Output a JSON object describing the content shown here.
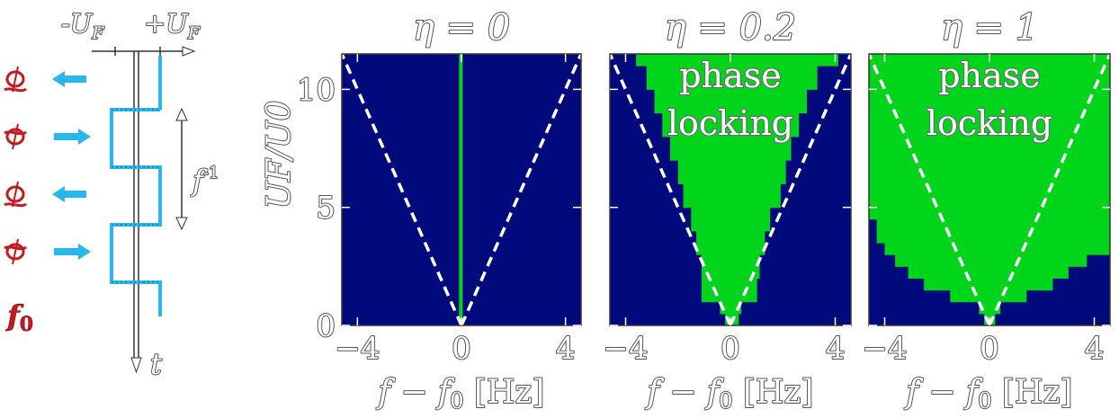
{
  "colors": {
    "background_region": "#000a7c",
    "locking_region": "#00d51b",
    "signal": "#29b6ea",
    "oscillator": "#c8181e",
    "dashed": "#ffffff"
  },
  "schematic": {
    "minus_label": "-U",
    "plus_label": "+U",
    "sub_F": "F",
    "time_label": "t",
    "period_label": "f",
    "period_exp": "-1",
    "freq_label": "f",
    "freq_sub": "0",
    "arrows": [
      "left",
      "right",
      "left",
      "right"
    ]
  },
  "chart_data": [
    {
      "type": "heatmap",
      "title": "η = 0",
      "xlabel": "f − f0 [Hz]",
      "ylabel": "UF/U0",
      "xlim": [
        -4.6,
        4.6
      ],
      "ylim": [
        0,
        11.5
      ],
      "x_ticks": [
        "−4",
        "0",
        "4"
      ],
      "y_ticks": [
        "0",
        "5",
        "10"
      ],
      "locking_label": "",
      "locking_width_half": [
        [
          0,
          0.04
        ],
        [
          11.5,
          0.04
        ]
      ]
    },
    {
      "type": "heatmap",
      "title": "η = 0.2",
      "xlabel": "f − f0 [Hz]",
      "ylabel": "",
      "xlim": [
        -4.6,
        4.6
      ],
      "ylim": [
        0,
        11.5
      ],
      "x_ticks": [
        "−4",
        "0",
        "4"
      ],
      "y_ticks": [
        "0",
        "5",
        "10"
      ],
      "locking_label": "phase\nlocking",
      "locking_steps": [
        [
          0,
          0.5,
          -0.2,
          0.3
        ],
        [
          0.5,
          1.0,
          -0.4,
          0.4
        ],
        [
          1.0,
          2.0,
          -1.1,
          1.0
        ],
        [
          2.0,
          3.0,
          -1.1,
          1.1
        ],
        [
          3.0,
          4.0,
          -1.3,
          1.3
        ],
        [
          4.0,
          5.0,
          -1.5,
          1.5
        ],
        [
          5.0,
          6.0,
          -1.8,
          1.9
        ],
        [
          6.0,
          7.0,
          -2.0,
          2.1
        ],
        [
          7.0,
          8.0,
          -2.3,
          2.3
        ],
        [
          8.0,
          9.0,
          -2.6,
          2.6
        ],
        [
          9.0,
          10.0,
          -2.9,
          2.9
        ],
        [
          10.0,
          11.0,
          -3.2,
          3.3
        ],
        [
          11.0,
          11.5,
          -3.6,
          4.1
        ]
      ]
    },
    {
      "type": "heatmap",
      "title": "η = 1",
      "xlabel": "f − f0 [Hz]",
      "ylabel": "",
      "xlim": [
        -4.6,
        4.6
      ],
      "ylim": [
        0,
        11.5
      ],
      "x_ticks": [
        "−4",
        "0",
        "4"
      ],
      "y_ticks": [
        "0",
        "5",
        "10"
      ],
      "locking_label": "phase\nlocking",
      "locking_steps": [
        [
          0,
          0.5,
          -0.2,
          0.2
        ],
        [
          0.5,
          1.0,
          -0.4,
          0.4
        ],
        [
          1.0,
          1.5,
          -1.5,
          1.4
        ],
        [
          1.5,
          2.0,
          -2.5,
          2.4
        ],
        [
          2.0,
          2.5,
          -3.1,
          3.0
        ],
        [
          2.5,
          3.0,
          -3.6,
          3.7
        ],
        [
          3.0,
          3.5,
          -4.0,
          4.6
        ],
        [
          3.5,
          4.5,
          -4.3,
          4.6
        ],
        [
          4.5,
          11.5,
          -4.6,
          4.6
        ]
      ]
    }
  ]
}
